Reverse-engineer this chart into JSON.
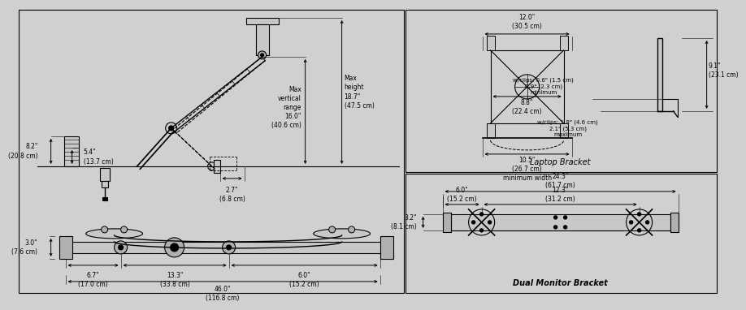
{
  "bg_color": "#d0d0d0",
  "line_color": "#000000",
  "gray_fill": "#b0b0b0",
  "light_gray": "#c8c8c8",
  "laptop_bracket_title": "Laptop Bracket",
  "dual_monitor_title": "Dual Monitor Bracket",
  "arm_dims": {
    "max_vertical_range": "Max\nvertical\nrange\n16.0\"\n(40.6 cm)",
    "max_height": "Max\nheight\n18.7\"\n(47.5 cm)",
    "left_top": "8.2\"\n(20.8 cm)",
    "left_bot": "5.4\"\n(13.7 cm)",
    "depth": "2.7\"\n(6.8 cm)"
  },
  "pole_dims": {
    "height": "3.0\"\n(7.6 cm)",
    "seg1": "6.7\"\n(17.0 cm)",
    "seg2": "13.3\"\n(33.8 cm)",
    "seg3": "6.0\"\n(15.2 cm)",
    "total": "46.0\"\n(116.8 cm)"
  },
  "laptop_dims": {
    "w120": "12.0\"\n(30.5 cm)",
    "w88": "8.8\"\n(22.4 cm)",
    "w105": "10.5\"\n(26.7 cm)\nminimum width",
    "h91": "9.1\"\n(23.1 cm)",
    "dmin": "w/clips: 0.6\" (1.5 cm)\n0.9\" (2.3 cm)\nminimum",
    "dmax": "w/clips: 1.8\" (4.6 cm)\n2.1\" (5.3 cm)\nmaximum"
  },
  "dual_dims": {
    "total": "24.3\"\n(61.7 cm)",
    "s1": "6.0\"\n(15.2 cm)",
    "s2": "12.3\"\n(31.2 cm)",
    "h": "3.2\"\n(8.1 cm)"
  }
}
